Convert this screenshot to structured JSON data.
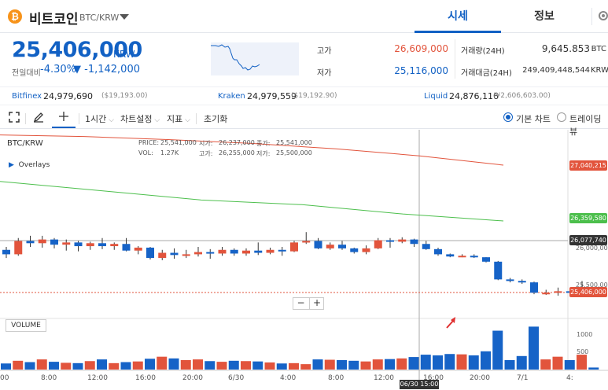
{
  "header": {
    "coin_name": "비트코인",
    "pair": "BTC/KRW",
    "tabs": [
      "시세",
      "정보"
    ]
  },
  "price": {
    "current": "25,406,000",
    "unit": "KRW",
    "change_label": "전일대비",
    "change_pct": "-4.30%",
    "change_abs": "▼ -1,142,000"
  },
  "stats": {
    "high_label": "고가",
    "high": "26,609,000",
    "low_label": "저가",
    "low": "25,116,000",
    "vol_label": "거래량(24H)",
    "vol": "9,645.853",
    "vol_unit": "BTC",
    "amt_label": "거래대금(24H)",
    "amt": "249,409,448,544",
    "amt_unit": "KRW"
  },
  "exchanges": [
    {
      "name": "Bitfinex",
      "krw": "24,979,690",
      "usd": "($19,193.00)"
    },
    {
      "name": "Kraken",
      "krw": "24,979,559",
      "usd": "($19,192.90)"
    },
    {
      "name": "Liquid",
      "krw": "24,876,116",
      "usd": "(¥2,606,603.00)"
    }
  ],
  "toolbar": {
    "interval": "1시간",
    "chart_settings": "차트설정",
    "indicators": "지표",
    "reset": "초기화",
    "basic_chart": "기본 차트",
    "trading_view": "트레이딩뷰"
  },
  "chart": {
    "pair": "BTC/KRW",
    "overlays": "Overlays",
    "ohlc": {
      "price_label": "PRICE:",
      "price": "25,541,000",
      "open_label": "시가:",
      "open": "26,237,000",
      "close_label": "종가:",
      "close": "25,541,000",
      "vol_label": "VOL:",
      "vol": "1.27K",
      "high_label": "고가:",
      "high": "26,255,000",
      "low_label": "저가:",
      "low": "25,500,000"
    },
    "volume_label": "VOLUME",
    "zoom_out": "−",
    "zoom_in": "+",
    "price_tags": {
      "ma_red": "27,040,215",
      "ma_green": "26,359,580",
      "crosshair": "26,077,740",
      "current": "25,406,000"
    },
    "y_ticks": [
      "26,000,000",
      "25,500,000"
    ],
    "vol_ticks": [
      "1000",
      "500"
    ],
    "x_ticks": [
      "00",
      "8:00",
      "12:00",
      "16:00",
      "20:00",
      "6/30",
      "4:00",
      "8:00",
      "12:00",
      "16:00",
      "20:00",
      "7/1",
      "4:"
    ],
    "time_tag": "06/30 15:00",
    "colors": {
      "up": "#e2543c",
      "down": "#1663c7",
      "ma_red": "#e2543c",
      "ma_green": "#4cbf4c",
      "tag_dark": "#333333"
    }
  },
  "chart_data": {
    "type": "candlestick",
    "candles": [
      [
        25960000,
        25900000,
        26000000,
        25850000,
        180
      ],
      [
        25900000,
        26080000,
        26120000,
        25880000,
        260
      ],
      [
        26080000,
        26050000,
        26150000,
        26000000,
        220
      ],
      [
        26050000,
        26100000,
        26150000,
        25990000,
        300
      ],
      [
        26100000,
        26030000,
        26120000,
        25980000,
        230
      ],
      [
        26030000,
        26060000,
        26100000,
        25950000,
        200
      ],
      [
        26060000,
        26010000,
        26080000,
        25940000,
        190
      ],
      [
        26010000,
        26050000,
        26070000,
        25960000,
        250
      ],
      [
        26050000,
        26010000,
        26120000,
        25970000,
        300
      ],
      [
        26010000,
        26040000,
        26060000,
        25960000,
        190
      ],
      [
        26040000,
        25950000,
        26120000,
        25940000,
        220
      ],
      [
        25950000,
        25990000,
        26010000,
        25900000,
        240
      ],
      [
        25990000,
        25850000,
        26000000,
        25830000,
        320
      ],
      [
        25850000,
        25920000,
        25960000,
        25820000,
        380
      ],
      [
        25920000,
        25890000,
        25980000,
        25840000,
        330
      ],
      [
        25890000,
        25900000,
        25960000,
        25850000,
        280
      ],
      [
        25900000,
        25930000,
        26000000,
        25870000,
        300
      ],
      [
        25930000,
        25910000,
        25970000,
        25840000,
        250
      ],
      [
        25910000,
        25960000,
        26000000,
        25880000,
        230
      ],
      [
        25960000,
        25910000,
        25980000,
        25880000,
        260
      ],
      [
        25910000,
        25950000,
        25980000,
        25880000,
        250
      ],
      [
        25950000,
        25920000,
        26060000,
        25890000,
        240
      ],
      [
        25920000,
        25960000,
        25990000,
        25900000,
        210
      ],
      [
        25960000,
        25940000,
        26000000,
        25880000,
        180
      ],
      [
        25940000,
        26060000,
        26080000,
        25930000,
        190
      ],
      [
        26060000,
        26080000,
        26200000,
        26040000,
        160
      ],
      [
        26080000,
        25980000,
        26120000,
        25970000,
        300
      ],
      [
        25980000,
        26030000,
        26060000,
        25960000,
        290
      ],
      [
        26030000,
        25980000,
        26080000,
        25960000,
        280
      ],
      [
        25980000,
        25930000,
        25990000,
        25910000,
        260
      ],
      [
        25930000,
        25980000,
        26020000,
        25900000,
        240
      ],
      [
        25980000,
        26090000,
        26120000,
        25970000,
        300
      ],
      [
        26090000,
        26070000,
        26120000,
        25990000,
        310
      ],
      [
        26070000,
        26100000,
        26130000,
        26050000,
        330
      ],
      [
        26100000,
        26040000,
        26110000,
        26000000,
        370
      ],
      [
        26040000,
        25970000,
        26080000,
        25960000,
        440
      ],
      [
        25970000,
        25900000,
        25990000,
        25880000,
        420
      ],
      [
        25900000,
        25870000,
        25910000,
        25860000,
        460
      ],
      [
        25870000,
        25880000,
        25900000,
        25860000,
        450
      ],
      [
        25880000,
        25860000,
        25900000,
        25850000,
        420
      ],
      [
        25860000,
        25800000,
        25860000,
        25790000,
        540
      ],
      [
        25800000,
        25560000,
        25810000,
        25550000,
        1150
      ],
      [
        25560000,
        25540000,
        25580000,
        25520000,
        280
      ],
      [
        25540000,
        25520000,
        25560000,
        25500000,
        400
      ],
      [
        25520000,
        25380000,
        25530000,
        25360000,
        1270
      ],
      [
        25380000,
        25380000,
        25420000,
        25350000,
        300
      ],
      [
        25380000,
        25400000,
        25450000,
        25340000,
        380
      ],
      [
        25400000,
        25380000,
        25430000,
        25330000,
        280
      ],
      [
        25380000,
        25420000,
        25540000,
        25330000,
        440
      ],
      [
        25420000,
        25410000,
        25450000,
        25380000,
        60
      ]
    ],
    "ma_red": [
      27440000,
      27420000,
      27380000,
      27330000,
      27260000,
      27170000,
      27050000
    ],
    "ma_green": [
      26840000,
      26720000,
      26600000,
      26540000,
      26420000,
      26330000
    ]
  }
}
